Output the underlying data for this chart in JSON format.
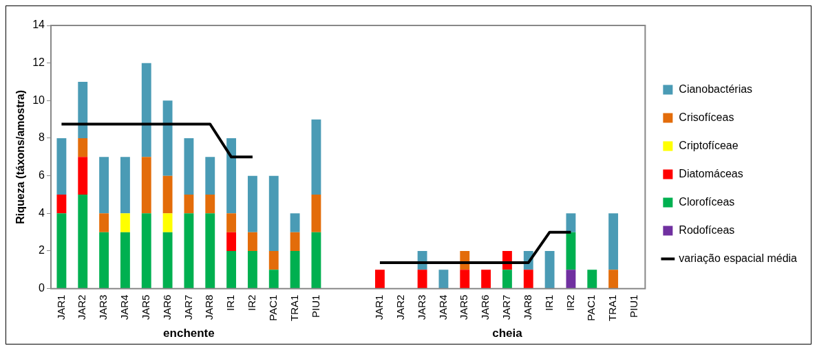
{
  "chart_data": {
    "type": "bar",
    "stacked": true,
    "ylabel": "Riqueza (táxons/amostra)",
    "categories": [
      "JAR1",
      "JAR2",
      "JAR3",
      "JAR4",
      "JAR5",
      "JAR6",
      "JAR7",
      "JAR8",
      "IR1",
      "IR2",
      "PAC1",
      "TRA1",
      "PIU1",
      null,
      null,
      "JAR1",
      "JAR2",
      "JAR3",
      "JAR4",
      "JAR5",
      "JAR6",
      "JAR7",
      "JAR8",
      "IR1",
      "IR2",
      "PAC1",
      "TRA1",
      "PIU1"
    ],
    "ylim": [
      0,
      14
    ],
    "yticks": [
      0,
      2,
      4,
      6,
      8,
      10,
      12,
      14
    ],
    "grid": false,
    "legend": "right",
    "annotations": [
      "enchente",
      "cheia"
    ],
    "series": [
      {
        "name": "Rodofíceas",
        "color": "#7030a0",
        "values": [
          null,
          null,
          null,
          null,
          null,
          null,
          null,
          null,
          null,
          null,
          null,
          null,
          null,
          null,
          null,
          null,
          null,
          null,
          null,
          null,
          null,
          null,
          null,
          null,
          1,
          null,
          null,
          null
        ]
      },
      {
        "name": "Clorofíceas",
        "color": "#00b050",
        "values": [
          4,
          5,
          3,
          3,
          4,
          3,
          4,
          4,
          2,
          2,
          1,
          2,
          3,
          null,
          null,
          null,
          null,
          null,
          null,
          null,
          null,
          1,
          null,
          null,
          2,
          1,
          null,
          null
        ]
      },
      {
        "name": "Diatomáceas",
        "color": "#ff0000",
        "values": [
          1,
          2,
          null,
          null,
          null,
          null,
          null,
          null,
          1,
          null,
          null,
          null,
          null,
          null,
          null,
          1,
          null,
          1,
          null,
          1,
          1,
          1,
          1,
          null,
          null,
          null,
          null,
          null
        ]
      },
      {
        "name": "Criptofíceae",
        "color": "#ffff00",
        "values": [
          null,
          null,
          null,
          1,
          null,
          1,
          null,
          null,
          null,
          null,
          null,
          null,
          null,
          null,
          null,
          null,
          null,
          null,
          null,
          null,
          null,
          null,
          null,
          null,
          null,
          null,
          null,
          null
        ]
      },
      {
        "name": "Crisofíceas",
        "color": "#e36c0a",
        "values": [
          null,
          1,
          1,
          null,
          3,
          2,
          1,
          1,
          1,
          1,
          1,
          1,
          2,
          null,
          null,
          null,
          null,
          null,
          null,
          1,
          null,
          null,
          null,
          null,
          null,
          null,
          1,
          null
        ]
      },
      {
        "name": "Cianobactérias",
        "color": "#4a9bb5",
        "values": [
          3,
          3,
          3,
          3,
          5,
          4,
          3,
          2,
          4,
          3,
          4,
          1,
          4,
          null,
          null,
          null,
          null,
          1,
          1,
          null,
          null,
          null,
          1,
          2,
          1,
          null,
          3,
          null
        ]
      },
      {
        "name": "variação espacial média",
        "type": "line",
        "color": "#000000",
        "values": [
          8.75,
          8.75,
          8.75,
          8.75,
          8.75,
          8.75,
          8.75,
          8.75,
          7,
          7,
          null,
          null,
          null,
          null,
          null,
          1.38,
          1.38,
          1.38,
          1.38,
          1.38,
          1.38,
          1.38,
          1.38,
          3,
          3,
          null,
          null,
          null
        ]
      }
    ]
  }
}
